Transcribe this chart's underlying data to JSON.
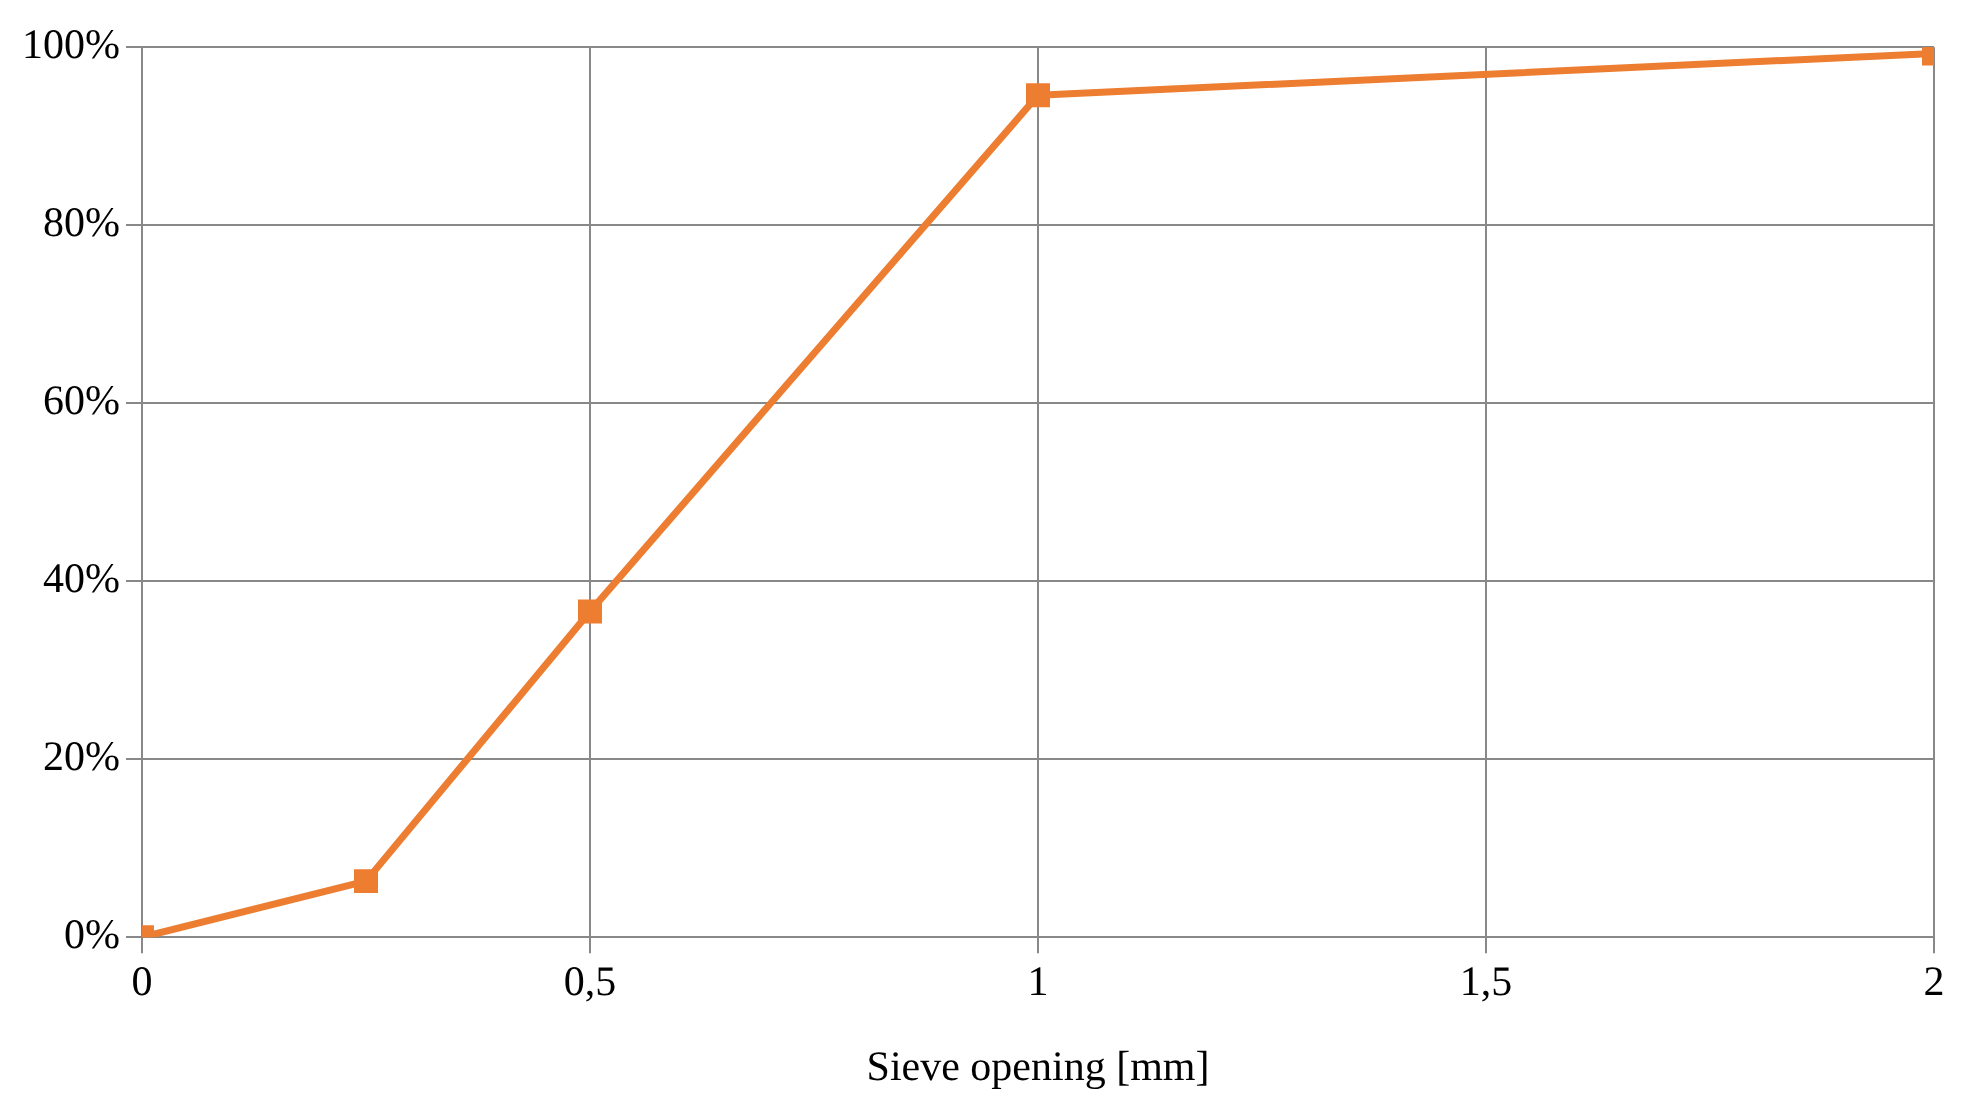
{
  "chart_data": {
    "type": "line",
    "xlabel": "Sieve opening [mm]",
    "x": [
      0,
      0.25,
      0.5,
      1,
      2
    ],
    "series": [
      {
        "color": "#ed7d31",
        "values": [
          0,
          6.3,
          36.6,
          94.6,
          99.3
        ]
      }
    ],
    "xlim": [
      0,
      2
    ],
    "xticks": [
      0,
      {
        "value": 0.5,
        "label": "0,5"
      },
      1,
      {
        "value": 1.5,
        "label": "1,5"
      },
      2
    ],
    "ylim": [
      0,
      100
    ],
    "yticks": [
      {
        "value": 0,
        "label": "0%"
      },
      {
        "value": 20,
        "label": "20%"
      },
      {
        "value": 40,
        "label": "40%"
      },
      {
        "value": 60,
        "label": "60%"
      },
      {
        "value": 80,
        "label": "80%"
      },
      {
        "value": 100,
        "label": "100%"
      }
    ],
    "grid": true,
    "marker": "square",
    "line_style": "solid",
    "legend": false
  }
}
